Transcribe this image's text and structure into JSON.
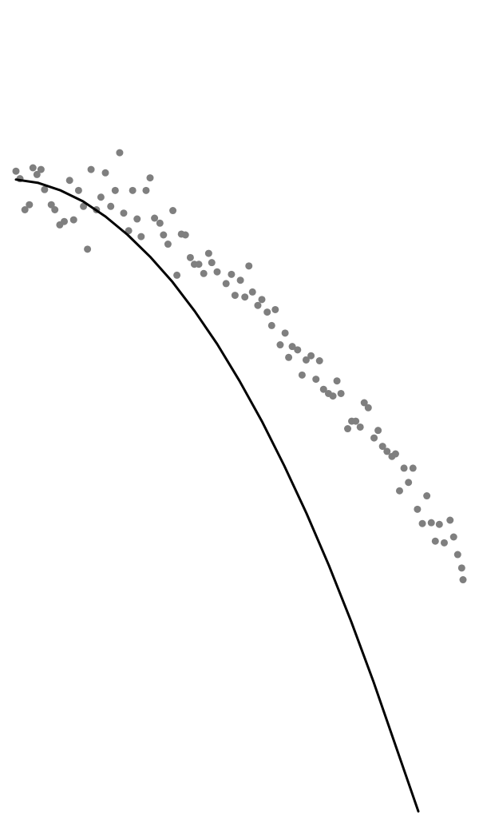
{
  "chart_data": {
    "type": "scatter",
    "title": "",
    "xlabel": "",
    "ylabel": "",
    "grid": false,
    "legend": "none",
    "xlim": [
      0,
      100
    ],
    "ylim": [
      0,
      100
    ],
    "colors": {
      "points": "#7f7f7f",
      "fit_line": "#000000",
      "background": "#ffffff"
    },
    "series": [
      {
        "type": "scatter",
        "points": [
          [
            0.0,
            79.6
          ],
          [
            0.9,
            78.7
          ],
          [
            2.0,
            75.0
          ],
          [
            3.0,
            75.6
          ],
          [
            3.8,
            80.0
          ],
          [
            4.7,
            79.2
          ],
          [
            5.6,
            79.8
          ],
          [
            6.4,
            77.4
          ],
          [
            7.9,
            75.6
          ],
          [
            8.7,
            75.0
          ],
          [
            9.8,
            73.2
          ],
          [
            10.8,
            73.6
          ],
          [
            12.0,
            78.5
          ],
          [
            12.9,
            73.8
          ],
          [
            14.0,
            77.3
          ],
          [
            15.1,
            75.4
          ],
          [
            16.0,
            70.3
          ],
          [
            16.8,
            79.8
          ],
          [
            18.0,
            75.0
          ],
          [
            19.0,
            76.5
          ],
          [
            20.0,
            79.4
          ],
          [
            21.2,
            75.4
          ],
          [
            22.2,
            77.3
          ],
          [
            23.2,
            81.8
          ],
          [
            24.1,
            74.6
          ],
          [
            25.2,
            72.5
          ],
          [
            26.1,
            77.3
          ],
          [
            27.1,
            73.9
          ],
          [
            28.0,
            71.8
          ],
          [
            29.1,
            77.3
          ],
          [
            30.0,
            78.8
          ],
          [
            31.0,
            74.0
          ],
          [
            32.2,
            73.4
          ],
          [
            33.0,
            72.0
          ],
          [
            34.0,
            70.9
          ],
          [
            35.1,
            74.9
          ],
          [
            36.0,
            67.2
          ],
          [
            37.0,
            72.1
          ],
          [
            37.9,
            72.0
          ],
          [
            39.0,
            69.3
          ],
          [
            39.9,
            68.5
          ],
          [
            40.9,
            68.5
          ],
          [
            42.0,
            67.4
          ],
          [
            43.1,
            69.8
          ],
          [
            43.8,
            68.7
          ],
          [
            45.0,
            67.6
          ],
          [
            47.0,
            66.2
          ],
          [
            48.2,
            67.3
          ],
          [
            49.0,
            64.8
          ],
          [
            50.2,
            66.6
          ],
          [
            51.2,
            64.6
          ],
          [
            52.1,
            68.3
          ],
          [
            52.9,
            65.2
          ],
          [
            54.1,
            63.6
          ],
          [
            55.0,
            64.3
          ],
          [
            56.2,
            62.8
          ],
          [
            57.2,
            61.2
          ],
          [
            58.0,
            63.1
          ],
          [
            59.1,
            58.9
          ],
          [
            60.2,
            60.3
          ],
          [
            61.0,
            57.4
          ],
          [
            61.8,
            58.7
          ],
          [
            63.0,
            58.3
          ],
          [
            64.0,
            55.3
          ],
          [
            64.9,
            57.1
          ],
          [
            66.0,
            57.6
          ],
          [
            67.1,
            54.8
          ],
          [
            67.9,
            57.0
          ],
          [
            68.8,
            53.6
          ],
          [
            69.9,
            53.1
          ],
          [
            70.9,
            52.8
          ],
          [
            71.8,
            54.6
          ],
          [
            72.7,
            53.1
          ],
          [
            74.2,
            48.9
          ],
          [
            75.1,
            49.8
          ],
          [
            76.0,
            49.8
          ],
          [
            77.0,
            49.1
          ],
          [
            77.9,
            52.0
          ],
          [
            78.8,
            51.4
          ],
          [
            80.1,
            47.8
          ],
          [
            81.0,
            48.7
          ],
          [
            82.0,
            46.8
          ],
          [
            83.0,
            46.2
          ],
          [
            84.1,
            45.6
          ],
          [
            84.9,
            45.9
          ],
          [
            85.8,
            41.5
          ],
          [
            86.8,
            44.2
          ],
          [
            87.8,
            42.5
          ],
          [
            88.8,
            44.2
          ],
          [
            89.8,
            39.3
          ],
          [
            90.9,
            37.6
          ],
          [
            91.9,
            40.9
          ],
          [
            92.9,
            37.7
          ],
          [
            93.8,
            35.5
          ],
          [
            94.7,
            37.5
          ],
          [
            95.8,
            35.3
          ],
          [
            97.1,
            38.0
          ],
          [
            97.9,
            36.0
          ],
          [
            98.8,
            33.9
          ],
          [
            99.7,
            32.3
          ],
          [
            100.0,
            30.9
          ]
        ]
      },
      {
        "type": "line",
        "points": [
          [
            0.0,
            78.6
          ],
          [
            5.0,
            78.2
          ],
          [
            10.0,
            77.3
          ],
          [
            15.0,
            76.0
          ],
          [
            20.0,
            74.2
          ],
          [
            25.0,
            72.0
          ],
          [
            30.0,
            69.4
          ],
          [
            35.0,
            66.4
          ],
          [
            40.0,
            62.9
          ],
          [
            45.0,
            59.0
          ],
          [
            50.0,
            54.6
          ],
          [
            55.0,
            49.8
          ],
          [
            60.0,
            44.5
          ],
          [
            65.0,
            38.8
          ],
          [
            70.0,
            32.6
          ],
          [
            75.0,
            25.9
          ],
          [
            80.0,
            18.7
          ],
          [
            85.0,
            11.0
          ],
          [
            90.0,
            3.3
          ]
        ]
      }
    ]
  }
}
